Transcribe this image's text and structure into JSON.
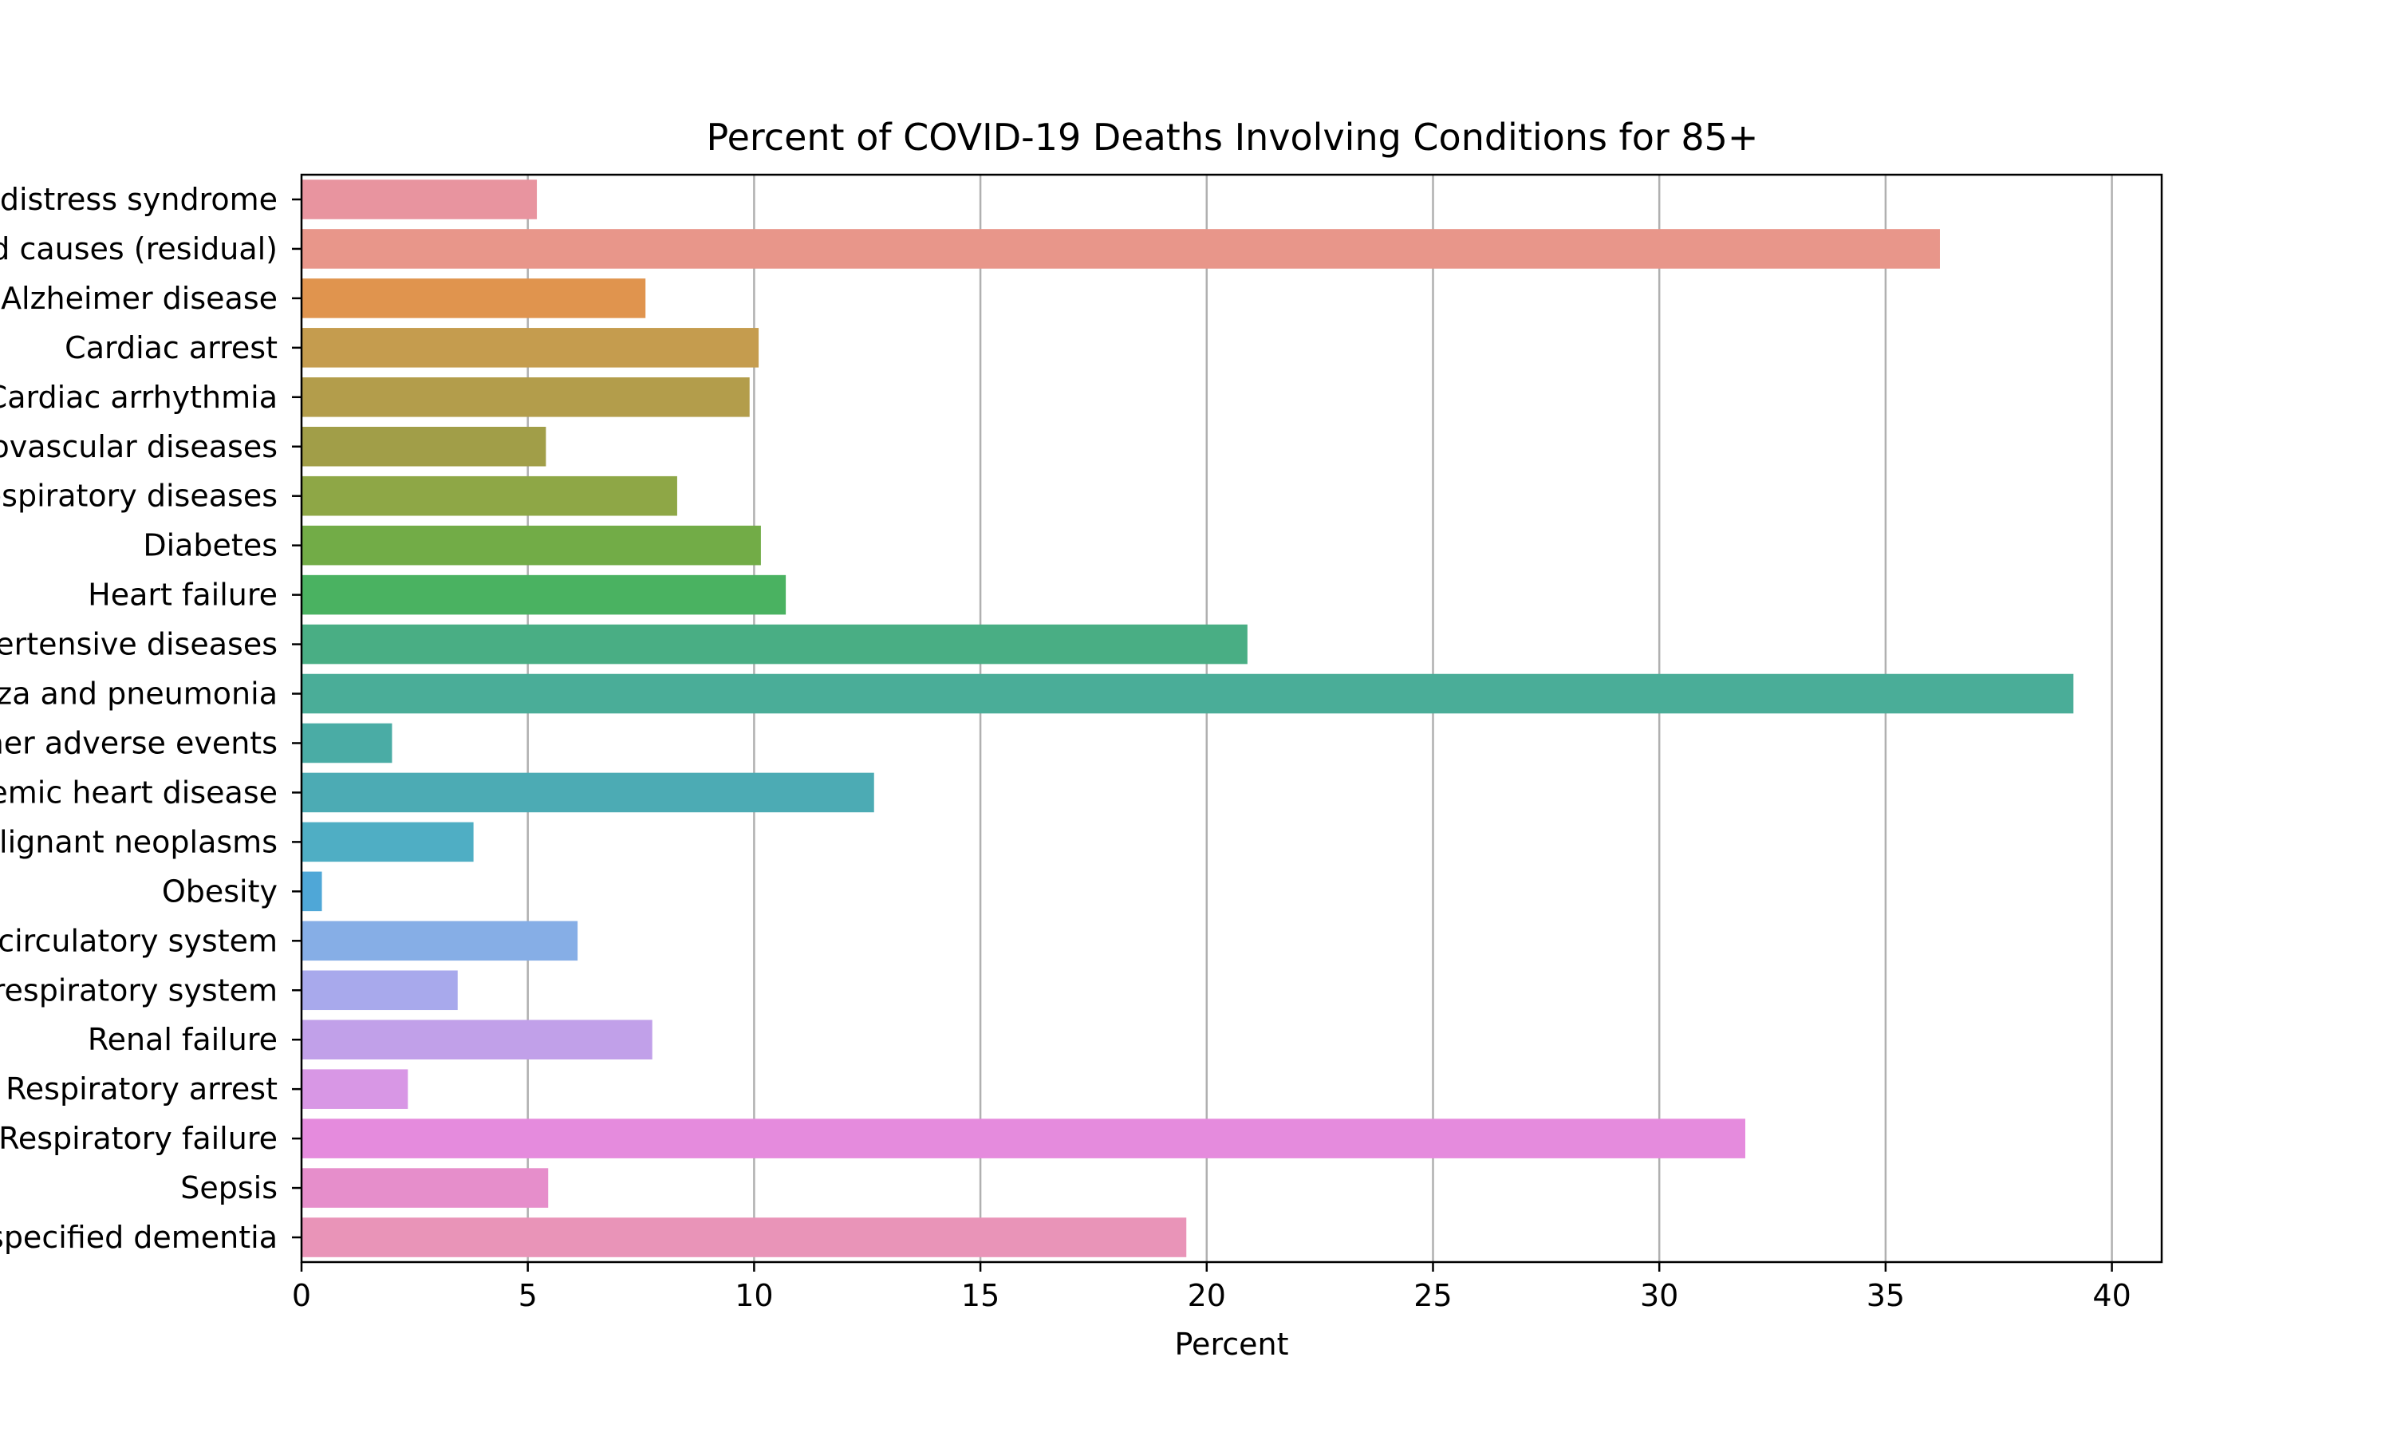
{
  "chart_data": {
    "type": "bar",
    "orientation": "horizontal",
    "title": "Percent of COVID-19 Deaths Involving Conditions for 85+",
    "xlabel": "Percent",
    "ylabel": "",
    "xlim": [
      0,
      41.1
    ],
    "xticks": [
      0,
      5,
      10,
      15,
      20,
      25,
      30,
      35,
      40
    ],
    "grid": "x",
    "categories": [
      "Adult respiratory distress syndrome",
      "All other conditions and causes (residual)",
      "Alzheimer disease",
      "Cardiac arrest",
      "Cardiac arrhythmia",
      "Cerebrovascular diseases",
      "Chronic lower respiratory diseases",
      "Diabetes",
      "Heart failure",
      "Hypertensive diseases",
      "Influenza and pneumonia",
      "Intentional and unintentional injury, poisoning, and other adverse events",
      "Ischemic heart disease",
      "Malignant neoplasms",
      "Obesity",
      "Other diseases of the circulatory system",
      "Other diseases of the respiratory system",
      "Renal failure",
      "Respiratory arrest",
      "Respiratory failure",
      "Sepsis",
      "Vascular and unspecified dementia"
    ],
    "values": [
      5.2,
      36.2,
      7.6,
      10.1,
      9.9,
      5.4,
      8.3,
      10.15,
      10.7,
      20.9,
      39.15,
      2.0,
      12.65,
      3.8,
      0.45,
      6.1,
      3.45,
      7.75,
      2.35,
      31.9,
      5.45,
      19.55
    ],
    "colors": [
      "#e8949f",
      "#e8968a",
      "#e0944e",
      "#c59c4e",
      "#b39d4b",
      "#a19e48",
      "#8ea746",
      "#72ac47",
      "#4ab261",
      "#49ae84",
      "#4aad98",
      "#4aaca5",
      "#4cabb4",
      "#4faec4",
      "#4fa7d7",
      "#86aee6",
      "#a8a9ec",
      "#c1a0e9",
      "#d897e5",
      "#e58bdd",
      "#e68ecb",
      "#e994b8"
    ]
  }
}
